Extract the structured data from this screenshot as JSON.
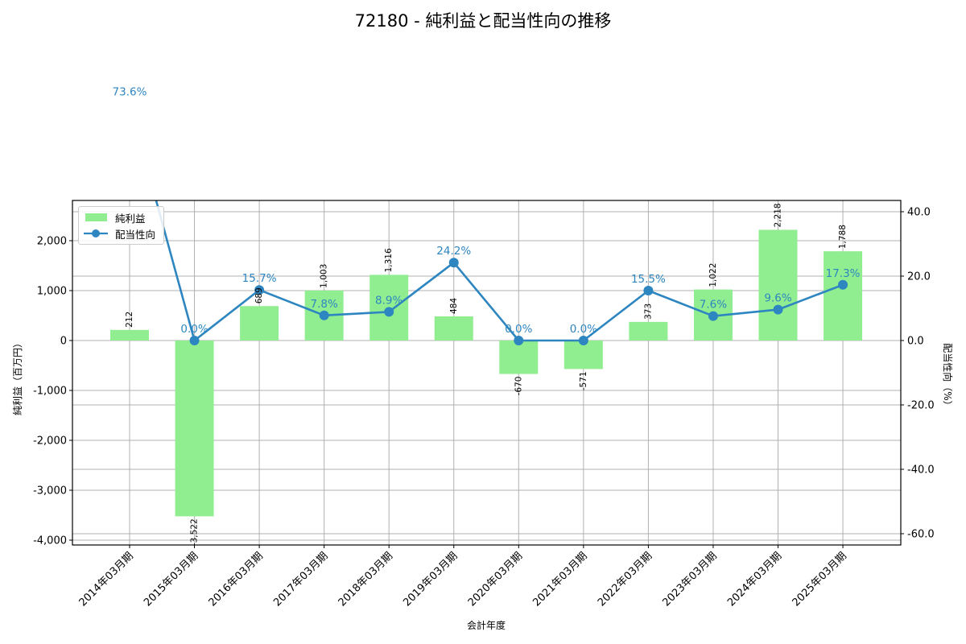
{
  "title": "72180 - 純利益と配当性向の推移",
  "legend": {
    "bar_label": "純利益",
    "line_label": "配当性向"
  },
  "axes": {
    "xlabel": "会計年度",
    "ylabel_left": "純利益（百万円）",
    "ylabel_right": "配当性向（%）"
  },
  "colors": {
    "bar": "#90ee90",
    "line": "#2e86c1",
    "grid": "#b0b0b0"
  },
  "chart_data": {
    "type": "bar+line",
    "title": "72180 - 純利益と配当性向の推移",
    "xlabel": "会計年度",
    "ylabel": "純利益（百万円）",
    "ylabel_right": "配当性向（%）",
    "categories": [
      "2014年03月期",
      "2015年03月期",
      "2016年03月期",
      "2017年03月期",
      "2018年03月期",
      "2019年03月期",
      "2020年03月期",
      "2021年03月期",
      "2022年03月期",
      "2023年03月期",
      "2024年03月期",
      "2025年03月期"
    ],
    "series": [
      {
        "name": "純利益",
        "type": "bar",
        "axis": "left",
        "values": [
          212,
          -3522,
          689,
          1003,
          1316,
          484,
          -670,
          -571,
          373,
          1022,
          2218,
          1788
        ],
        "labels": [
          "212",
          "-3,522",
          "689",
          "1,003",
          "1,316",
          "484",
          "-670",
          "-571",
          "373",
          "1,022",
          "2,218",
          "1,788"
        ]
      },
      {
        "name": "配当性向",
        "type": "line",
        "axis": "right",
        "values": [
          73.6,
          0.0,
          15.7,
          7.8,
          8.9,
          24.2,
          0.0,
          0.0,
          15.5,
          7.6,
          9.6,
          17.3
        ],
        "labels": [
          "73.6%",
          "0.0%",
          "15.7%",
          "7.8%",
          "8.9%",
          "24.2%",
          "0.0%",
          "0.0%",
          "15.5%",
          "7.6%",
          "9.6%",
          "17.3%"
        ]
      }
    ],
    "ylim_left": [
      -4100,
      2800
    ],
    "yticks_left": [
      "-4,000",
      "-3,000",
      "-2,000",
      "-1,000",
      "0",
      "1,000",
      "2,000"
    ],
    "ytick_values_left": [
      -4000,
      -3000,
      -2000,
      -1000,
      0,
      1000,
      2000
    ],
    "ylim_right": [
      -63.5,
      43.5
    ],
    "yticks_right": [
      "-60.0",
      "-40.0",
      "-20.0",
      "0.0",
      "20.0",
      "40.0"
    ],
    "ytick_values_right": [
      -60,
      -40,
      -20,
      0,
      20,
      40
    ],
    "grid": true,
    "legend_position": "upper left"
  }
}
